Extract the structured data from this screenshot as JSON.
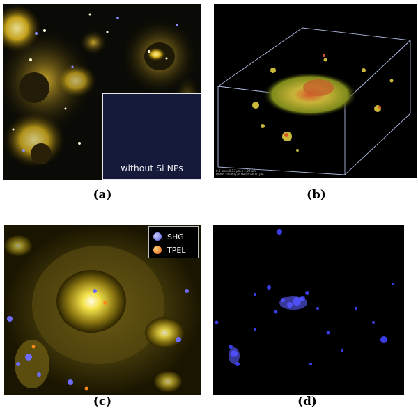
{
  "panels": [
    {
      "id": "a",
      "caption": "(a)",
      "inset": {
        "label": "without Si NPs"
      }
    },
    {
      "id": "b",
      "caption": "(b)",
      "scale_lines": [
        "0.0 µm  x 0.13 µm  z 1.00 µm",
        "Width 100.00 µm  Depth 60.00 µm"
      ]
    },
    {
      "id": "c",
      "caption": "(c)",
      "legend": [
        {
          "label": "SHG",
          "color": "#7b82ff"
        },
        {
          "label": "TPEL",
          "color": "#ff8a1a"
        }
      ]
    },
    {
      "id": "d",
      "caption": "(d)"
    }
  ],
  "colors": {
    "background": "#000000",
    "fluorescence_yellow": "#e8d23a",
    "shg_blue": "#3a3cf0",
    "inset_background": "#15193a"
  }
}
